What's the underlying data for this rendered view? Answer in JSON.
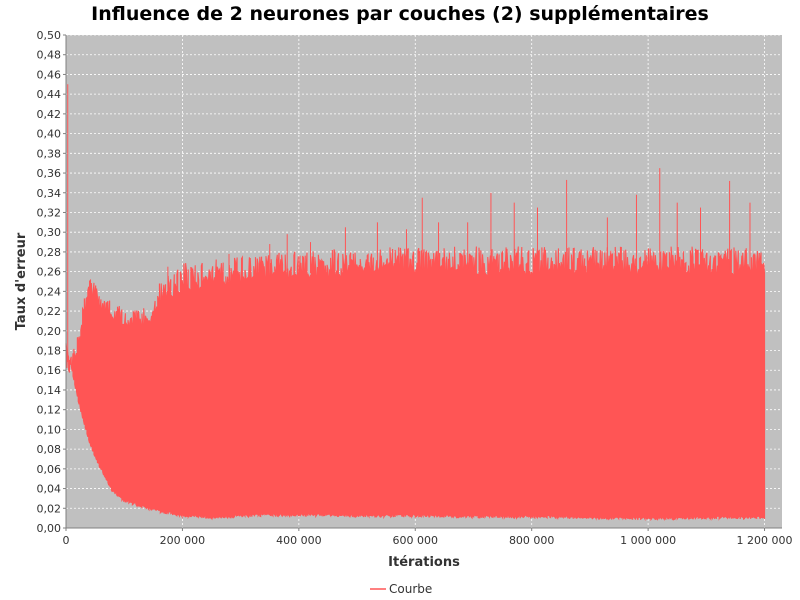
{
  "chart_data": {
    "type": "line",
    "title": "Influence de 2 neurones par couches (2) supplémentaires",
    "xlabel": "Itérations",
    "ylabel": "Taux d'erreur",
    "xlim": [
      0,
      1230000
    ],
    "ylim": [
      0,
      0.5
    ],
    "x_ticks": [
      0,
      200000,
      400000,
      600000,
      800000,
      1000000,
      1200000
    ],
    "x_tick_labels": [
      "0",
      "200 000",
      "400 000",
      "600 000",
      "800 000",
      "1 000 000",
      "1 200 000"
    ],
    "y_ticks": [
      0,
      0.02,
      0.04,
      0.06,
      0.08,
      0.1,
      0.12,
      0.14,
      0.16,
      0.18,
      0.2,
      0.22,
      0.24,
      0.26,
      0.28,
      0.3,
      0.32,
      0.34,
      0.36,
      0.38,
      0.4,
      0.42,
      0.44,
      0.46,
      0.48,
      0.5
    ],
    "y_tick_labels": [
      "0,00",
      "0,02",
      "0,04",
      "0,06",
      "0,08",
      "0,10",
      "0,12",
      "0,14",
      "0,16",
      "0,18",
      "0,20",
      "0,22",
      "0,24",
      "0,26",
      "0,28",
      "0,30",
      "0,32",
      "0,34",
      "0,36",
      "0,38",
      "0,40",
      "0,42",
      "0,44",
      "0,46",
      "0,48",
      "0,50"
    ],
    "grid": true,
    "legend_position": "bottom-center",
    "series": [
      {
        "name": "Courbe",
        "color": "#ff5555",
        "upper_envelope": {
          "x": [
            0,
            2000,
            5000,
            10000,
            20000,
            30000,
            40000,
            50000,
            60000,
            80000,
            100000,
            120000,
            140000,
            160000,
            180000,
            200000,
            240000,
            300000,
            400000,
            500000,
            600000,
            700000,
            800000,
            900000,
            1000000,
            1100000,
            1200000
          ],
          "y": [
            0.185,
            0.18,
            0.175,
            0.18,
            0.2,
            0.235,
            0.253,
            0.25,
            0.24,
            0.228,
            0.224,
            0.222,
            0.224,
            0.235,
            0.25,
            0.255,
            0.258,
            0.262,
            0.268,
            0.27,
            0.272,
            0.272,
            0.272,
            0.272,
            0.272,
            0.272,
            0.272
          ]
        },
        "lower_envelope": {
          "x": [
            0,
            5000,
            10000,
            20000,
            40000,
            60000,
            80000,
            100000,
            150000,
            200000,
            260000,
            300000,
            400000,
            500000,
            600000,
            700000,
            800000,
            900000,
            1000000,
            1100000,
            1200000
          ],
          "y": [
            0.185,
            0.17,
            0.16,
            0.13,
            0.085,
            0.058,
            0.036,
            0.026,
            0.017,
            0.011,
            0.009,
            0.011,
            0.012,
            0.011,
            0.011,
            0.01,
            0.01,
            0.009,
            0.008,
            0.009,
            0.009
          ]
        },
        "spikes": [
          {
            "x": 3000,
            "y": 0.45
          },
          {
            "x": 175000,
            "y": 0.265
          },
          {
            "x": 280000,
            "y": 0.278
          },
          {
            "x": 350000,
            "y": 0.288
          },
          {
            "x": 380000,
            "y": 0.298
          },
          {
            "x": 420000,
            "y": 0.29
          },
          {
            "x": 480000,
            "y": 0.305
          },
          {
            "x": 535000,
            "y": 0.31
          },
          {
            "x": 585000,
            "y": 0.303
          },
          {
            "x": 612000,
            "y": 0.335
          },
          {
            "x": 640000,
            "y": 0.31
          },
          {
            "x": 690000,
            "y": 0.31
          },
          {
            "x": 730000,
            "y": 0.34
          },
          {
            "x": 770000,
            "y": 0.33
          },
          {
            "x": 810000,
            "y": 0.325
          },
          {
            "x": 860000,
            "y": 0.353
          },
          {
            "x": 930000,
            "y": 0.315
          },
          {
            "x": 980000,
            "y": 0.338
          },
          {
            "x": 1020000,
            "y": 0.365
          },
          {
            "x": 1050000,
            "y": 0.33
          },
          {
            "x": 1090000,
            "y": 0.325
          },
          {
            "x": 1140000,
            "y": 0.352
          },
          {
            "x": 1175000,
            "y": 0.33
          }
        ]
      }
    ]
  }
}
